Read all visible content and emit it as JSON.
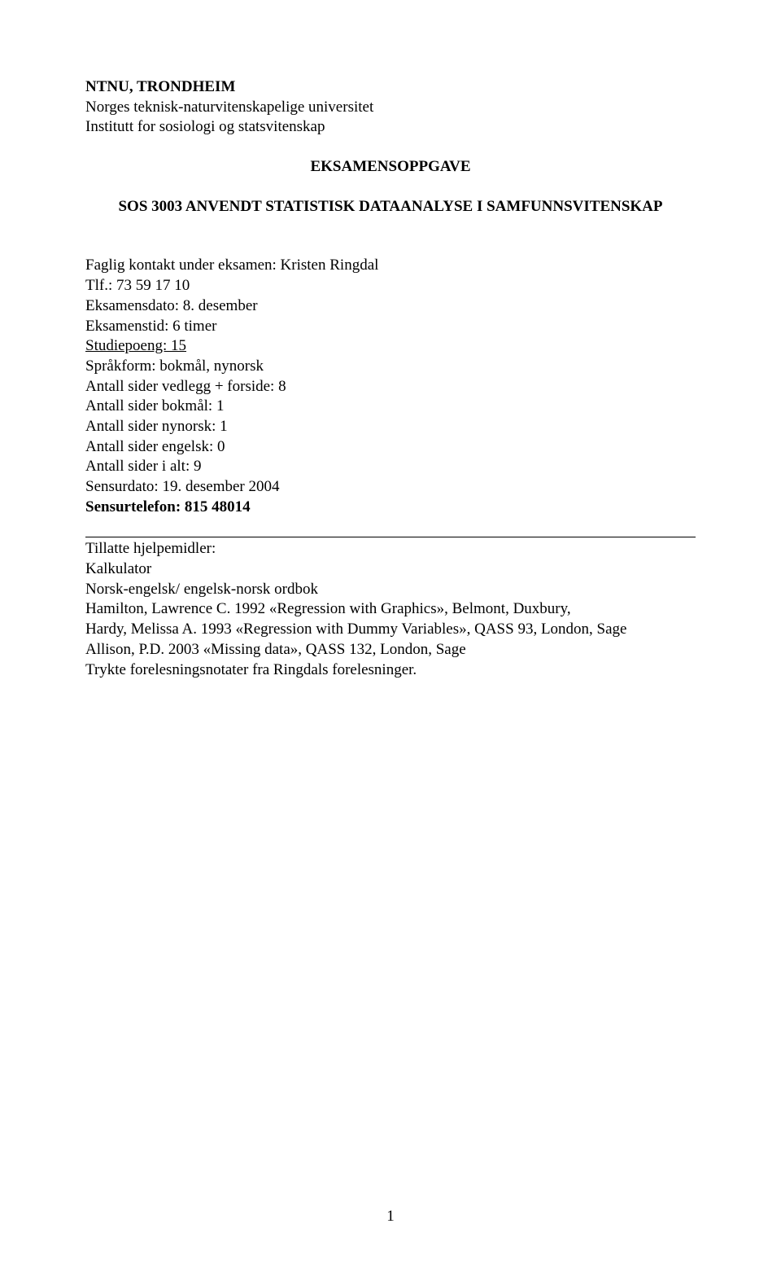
{
  "header": {
    "line1": "NTNU, TRONDHEIM",
    "line2": "Norges teknisk-naturvitenskapelige universitet",
    "line3": "Institutt for sosiologi og statsvitenskap"
  },
  "title": "EKSAMENSOPPGAVE",
  "subtitle": "SOS 3003 ANVENDT STATISTISK DATAANALYSE I SAMFUNNSVITENSKAP",
  "details": {
    "contact": "Faglig kontakt under eksamen: Kristen Ringdal",
    "phone": "Tlf.: 73 59 17 10",
    "exam_date": "Eksamensdato: 8. desember",
    "exam_time": "Eksamenstid: 6 timer",
    "credits_label": "Studiepoeng: 15",
    "language": "Språkform: bokmål, nynorsk",
    "pages_attachment": "Antall sider vedlegg + forside: 8",
    "pages_bokmal": "Antall sider bokmål: 1",
    "pages_nynorsk": "Antall sider nynorsk:  1",
    "pages_english": "Antall sider engelsk:  0",
    "pages_total": "Antall sider i alt:  9",
    "grade_date": "Sensurdato:  19. desember 2004",
    "grade_phone": "Sensurtelefon: 815 48014"
  },
  "aids": {
    "heading": "Tillatte hjelpemidler:",
    "line1": "Kalkulator",
    "line2": "Norsk-engelsk/ engelsk-norsk ordbok",
    "line3": "Hamilton, Lawrence C. 1992 «Regression with Graphics», Belmont, Duxbury,",
    "line4": "Hardy, Melissa A. 1993 «Regression with Dummy Variables», QASS 93, London, Sage",
    "line5": "Allison, P.D. 2003 «Missing data», QASS 132, London, Sage",
    "line6": "Trykte forelesningsnotater fra Ringdals forelesninger."
  },
  "page_number": "1"
}
